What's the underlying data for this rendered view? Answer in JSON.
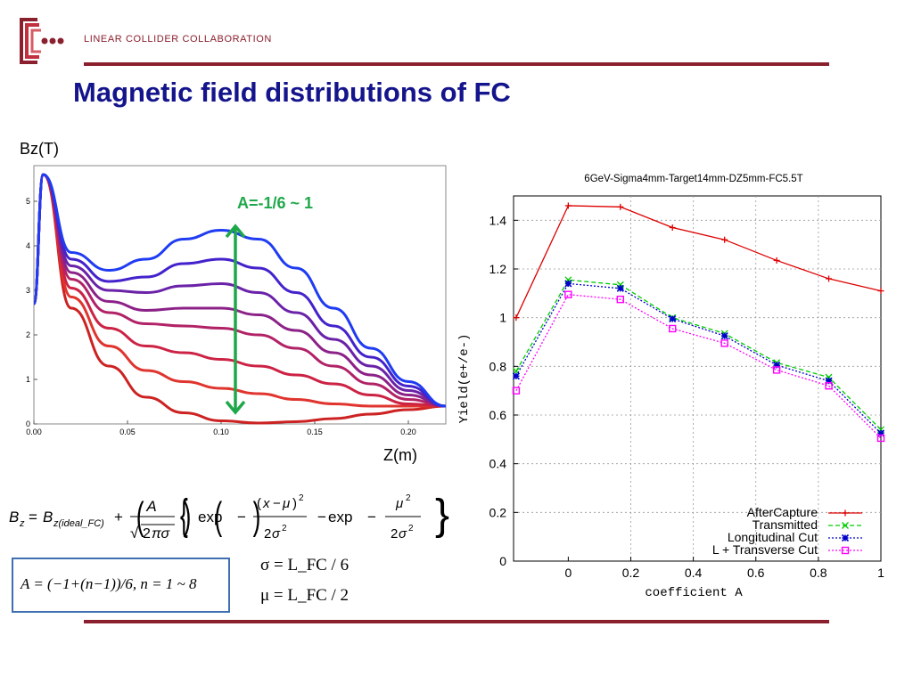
{
  "header": {
    "org_name": "LINEAR COLLIDER COLLABORATION",
    "slide_title": "Magnetic field distributions of FC"
  },
  "colors": {
    "brand": "#8a1f2d",
    "title": "#14148c",
    "annotation": "#1fa84a",
    "box_border": "#3e6fb0"
  },
  "left_plot": {
    "y_label": "Bz(T)",
    "x_label": "Z(m)",
    "annotation": "A=-1/6 ~ 1",
    "x_ticks": [
      "0.00",
      "0.05",
      "0.10",
      "0.15",
      "0.20"
    ],
    "y_ticks": [
      "0",
      "1",
      "2",
      "3",
      "4",
      "5"
    ]
  },
  "equations": {
    "bz_main": "B_z = B_z(ideal_FC) + A/(√(2π)σ) { exp(−(x−μ)²/(2σ²)) − exp(−μ²/(2σ²)) }",
    "sigma_def": "σ = L_FC / 6",
    "mu_def": "μ = L_FC / 2",
    "a_def": "A = (−1+(n−1))/6,  n = 1 ~ 8"
  },
  "chart_data": [
    {
      "type": "line",
      "title": "",
      "xlabel": "Z(m)",
      "ylabel": "Bz(T)",
      "xlim": [
        0,
        0.22
      ],
      "ylim": [
        0,
        5.8
      ],
      "x_ticks": [
        0.0,
        0.05,
        0.1,
        0.15,
        0.2
      ],
      "y_ticks": [
        0,
        1,
        2,
        3,
        4,
        5
      ],
      "note": "eight curves, n = 1 ~ 8",
      "series": [
        {
          "color": "#cc2222",
          "values": [
            [
              0,
              2.7
            ],
            [
              0.005,
              5.6
            ],
            [
              0.02,
              2.6
            ],
            [
              0.04,
              1.3
            ],
            [
              0.06,
              0.6
            ],
            [
              0.08,
              0.25
            ],
            [
              0.1,
              0.07
            ],
            [
              0.12,
              0.02
            ],
            [
              0.14,
              0.05
            ],
            [
              0.16,
              0.12
            ],
            [
              0.18,
              0.22
            ],
            [
              0.2,
              0.32
            ],
            [
              0.22,
              0.4
            ]
          ]
        },
        {
          "color": "#e0342e",
          "values": [
            [
              0,
              2.7
            ],
            [
              0.005,
              5.6
            ],
            [
              0.02,
              2.85
            ],
            [
              0.04,
              1.75
            ],
            [
              0.06,
              1.2
            ],
            [
              0.08,
              0.95
            ],
            [
              0.1,
              0.8
            ],
            [
              0.12,
              0.68
            ],
            [
              0.14,
              0.55
            ],
            [
              0.16,
              0.45
            ],
            [
              0.18,
              0.4
            ],
            [
              0.2,
              0.4
            ],
            [
              0.22,
              0.4
            ]
          ]
        },
        {
          "color": "#cc2244",
          "values": [
            [
              0,
              2.7
            ],
            [
              0.005,
              5.6
            ],
            [
              0.02,
              3.05
            ],
            [
              0.04,
              2.15
            ],
            [
              0.06,
              1.75
            ],
            [
              0.08,
              1.6
            ],
            [
              0.1,
              1.45
            ],
            [
              0.12,
              1.3
            ],
            [
              0.14,
              1.1
            ],
            [
              0.16,
              0.9
            ],
            [
              0.18,
              0.65
            ],
            [
              0.2,
              0.45
            ],
            [
              0.22,
              0.4
            ]
          ]
        },
        {
          "color": "#b12266",
          "values": [
            [
              0,
              2.7
            ],
            [
              0.005,
              5.6
            ],
            [
              0.02,
              3.25
            ],
            [
              0.04,
              2.5
            ],
            [
              0.06,
              2.25
            ],
            [
              0.08,
              2.2
            ],
            [
              0.1,
              2.15
            ],
            [
              0.12,
              2.0
            ],
            [
              0.14,
              1.7
            ],
            [
              0.16,
              1.3
            ],
            [
              0.18,
              0.9
            ],
            [
              0.2,
              0.55
            ],
            [
              0.22,
              0.4
            ]
          ]
        },
        {
          "color": "#8c2288",
          "values": [
            [
              0,
              2.7
            ],
            [
              0.005,
              5.6
            ],
            [
              0.02,
              3.4
            ],
            [
              0.04,
              2.75
            ],
            [
              0.06,
              2.55
            ],
            [
              0.08,
              2.6
            ],
            [
              0.1,
              2.6
            ],
            [
              0.12,
              2.45
            ],
            [
              0.14,
              2.1
            ],
            [
              0.16,
              1.6
            ],
            [
              0.18,
              1.1
            ],
            [
              0.2,
              0.65
            ],
            [
              0.22,
              0.4
            ]
          ]
        },
        {
          "color": "#6a22a8",
          "values": [
            [
              0,
              2.7
            ],
            [
              0.005,
              5.6
            ],
            [
              0.02,
              3.55
            ],
            [
              0.04,
              3.0
            ],
            [
              0.06,
              2.95
            ],
            [
              0.08,
              3.1
            ],
            [
              0.1,
              3.15
            ],
            [
              0.12,
              2.95
            ],
            [
              0.14,
              2.5
            ],
            [
              0.16,
              1.9
            ],
            [
              0.18,
              1.3
            ],
            [
              0.2,
              0.75
            ],
            [
              0.22,
              0.4
            ]
          ]
        },
        {
          "color": "#4422cc",
          "values": [
            [
              0,
              2.7
            ],
            [
              0.005,
              5.6
            ],
            [
              0.02,
              3.7
            ],
            [
              0.04,
              3.2
            ],
            [
              0.06,
              3.3
            ],
            [
              0.08,
              3.6
            ],
            [
              0.1,
              3.7
            ],
            [
              0.12,
              3.5
            ],
            [
              0.14,
              2.95
            ],
            [
              0.16,
              2.2
            ],
            [
              0.18,
              1.5
            ],
            [
              0.2,
              0.85
            ],
            [
              0.22,
              0.4
            ]
          ]
        },
        {
          "color": "#1f3cf2",
          "values": [
            [
              0,
              2.7
            ],
            [
              0.005,
              5.6
            ],
            [
              0.02,
              3.85
            ],
            [
              0.04,
              3.45
            ],
            [
              0.06,
              3.7
            ],
            [
              0.08,
              4.15
            ],
            [
              0.1,
              4.35
            ],
            [
              0.12,
              4.15
            ],
            [
              0.14,
              3.5
            ],
            [
              0.16,
              2.6
            ],
            [
              0.18,
              1.7
            ],
            [
              0.2,
              0.95
            ],
            [
              0.22,
              0.4
            ]
          ]
        }
      ]
    },
    {
      "type": "line",
      "title": "6GeV-Sigma4mm-Target14mm-DZ5mm-FC5.5T",
      "xlabel": "coefficient A",
      "ylabel": "Yield(e+/e-)",
      "xlim": [
        -0.1667,
        1.0
      ],
      "ylim": [
        0,
        1.5
      ],
      "x_tick_labels": [
        "0",
        "0.2",
        "0.4",
        "0.6",
        "0.8",
        "1"
      ],
      "y_tick_labels": [
        "0",
        "0.2",
        "0.4",
        "0.6",
        "0.8",
        "1",
        "1.2",
        "1.4"
      ],
      "grid": true,
      "legend_position": "bottom-right",
      "x": [
        -0.1667,
        0.0,
        0.1667,
        0.3333,
        0.5,
        0.6667,
        0.8333,
        1.0
      ],
      "series": [
        {
          "name": "AfterCapture",
          "color": "#dd0000",
          "dash": "solid",
          "marker": "plus",
          "values": [
            1.0,
            1.46,
            1.455,
            1.37,
            1.32,
            1.235,
            1.16,
            1.11
          ]
        },
        {
          "name": "Transmitted",
          "color": "#00cc00",
          "dash": "dashed",
          "marker": "cross",
          "values": [
            0.78,
            1.155,
            1.135,
            1.0,
            0.935,
            0.815,
            0.755,
            0.54
          ]
        },
        {
          "name": "Longitudinal Cut",
          "color": "#0000cc",
          "dash": "dotted",
          "marker": "star",
          "values": [
            0.76,
            1.14,
            1.12,
            0.995,
            0.925,
            0.805,
            0.74,
            0.525
          ]
        },
        {
          "name": "L + Transverse Cut",
          "color": "#ff00ff",
          "dash": "dotted",
          "marker": "square",
          "values": [
            0.7,
            1.095,
            1.075,
            0.955,
            0.895,
            0.785,
            0.72,
            0.505
          ]
        }
      ]
    }
  ]
}
